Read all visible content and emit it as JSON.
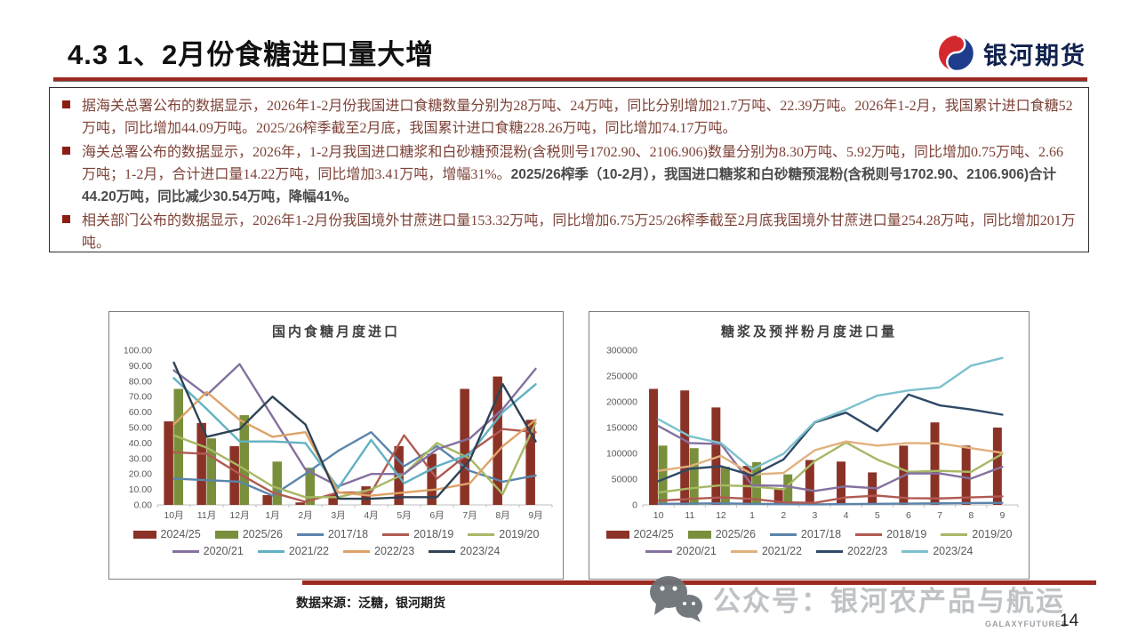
{
  "slide": {
    "title": "4.3 1、2月份食糖进口量大增",
    "logo_text": "银河期货",
    "page_number": "14",
    "source_note": "数据来源：泛糖，银河期货",
    "watermark": {
      "text": "公众号：银河农产品与航运",
      "sub": "GALAXYFUTURES"
    }
  },
  "bullets": [
    {
      "segments": [
        {
          "bold": false,
          "text": "据海关总署公布的数据显示，2026年1-2月份我国进口食糖数量分别为28万吨、24万吨，同比分别增加21.7万吨、22.39万吨。2026年1-2月，我国累计进口食糖52万吨，同比增加44.09万吨。2025/26榨季截至2月底，我国累计进口食糖228.26万吨，同比增加74.17万吨。"
        }
      ]
    },
    {
      "segments": [
        {
          "bold": false,
          "text": "海关总署公布的数据显示，2026年，1-2月我国进口糖浆和白砂糖预混粉(含税则号1702.90、2106.906)数量分别为8.30万吨、5.92万吨，同比增加0.75万吨、2.66万吨；1-2月，合计进口量14.22万吨，同比增加3.41万吨，增幅31%。"
        },
        {
          "bold": true,
          "text": "2025/26榨季（10-2月），我国进口糖浆和白砂糖预混粉(含税则号1702.90、2106.906)合计44.20万吨，同比减少30.54万吨，降幅41%。"
        }
      ]
    },
    {
      "segments": [
        {
          "bold": false,
          "text": "相关部门公布的数据显示，2026年1-2月份我国境外甘蔗进口量153.32万吨，同比增加6.75万25/26榨季截至2月底我国境外甘蔗进口量254.28万吨，同比增加201万吨。"
        }
      ]
    }
  ],
  "chart_data": [
    {
      "type": "bar+line",
      "title": "国内食糖月度进口",
      "categories": [
        "10月",
        "11月",
        "12月",
        "1月",
        "2月",
        "3月",
        "4月",
        "5月",
        "6月",
        "7月",
        "8月",
        "9月"
      ],
      "ylim": [
        0,
        100
      ],
      "grid": false,
      "legend_position": "bottom",
      "y_ticks": [
        {
          "value": 100,
          "label": "100.00"
        },
        {
          "value": 90,
          "label": "90.00"
        },
        {
          "value": 80,
          "label": "80.00"
        },
        {
          "value": 70,
          "label": "70.00"
        },
        {
          "value": 60,
          "label": "60.00"
        },
        {
          "value": 50,
          "label": "50.00"
        },
        {
          "value": 40,
          "label": "40.00"
        },
        {
          "value": 30,
          "label": "30.00"
        },
        {
          "value": 20,
          "label": "20.00"
        },
        {
          "value": 10,
          "label": "10.00"
        },
        {
          "value": 0,
          "label": "0.00"
        }
      ],
      "bar_series": [
        {
          "name": "2024/25",
          "color": "#8b3226",
          "values": [
            54,
            53,
            38,
            6.3,
            1.6,
            7,
            12,
            38,
            33,
            75,
            83,
            55
          ]
        },
        {
          "name": "2025/26",
          "color": "#7a8f3c",
          "values": [
            75,
            43,
            58,
            28,
            24,
            null,
            null,
            null,
            null,
            null,
            null,
            null
          ]
        }
      ],
      "line_series": [
        {
          "name": "2017/18",
          "color": "#5b84ab",
          "values": [
            17,
            16,
            15,
            6,
            20,
            35,
            47,
            25,
            38,
            22,
            15,
            19
          ]
        },
        {
          "name": "2018/19",
          "color": "#b05a52",
          "values": [
            34,
            33,
            20,
            8,
            2,
            8,
            8,
            45,
            17,
            34,
            49,
            47
          ]
        },
        {
          "name": "2019/20",
          "color": "#a7b864",
          "values": [
            45,
            37,
            25,
            12,
            5,
            5,
            10,
            20,
            40,
            30,
            7,
            53
          ]
        },
        {
          "name": "2020/21",
          "color": "#84719f",
          "values": [
            87,
            71,
            91,
            57,
            23,
            12,
            20,
            20,
            36,
            43,
            62,
            88
          ]
        },
        {
          "name": "2021/22",
          "color": "#62b1c2",
          "values": [
            82,
            62,
            41,
            41,
            40,
            11,
            42,
            14,
            25,
            33,
            60,
            78
          ]
        },
        {
          "name": "2022/23",
          "color": "#dda266",
          "values": [
            52,
            73,
            55,
            44,
            47,
            8,
            6,
            8,
            10,
            14,
            38,
            55
          ]
        },
        {
          "name": "2023/24",
          "color": "#2e4355",
          "values": [
            92,
            44,
            49,
            70,
            52,
            4,
            4,
            5,
            5,
            29,
            78,
            41
          ]
        }
      ]
    },
    {
      "type": "bar+line",
      "title": "糖浆及预拌粉月度进口量",
      "categories": [
        "10",
        "11",
        "12",
        "1",
        "2",
        "3",
        "4",
        "5",
        "6",
        "7",
        "8",
        "9"
      ],
      "ylim": [
        0,
        300000
      ],
      "grid": false,
      "legend_position": "bottom",
      "y_ticks": [
        {
          "value": 300000,
          "label": "300000"
        },
        {
          "value": 250000,
          "label": "250000"
        },
        {
          "value": 200000,
          "label": "200000"
        },
        {
          "value": 150000,
          "label": "150000"
        },
        {
          "value": 100000,
          "label": "100000"
        },
        {
          "value": 50000,
          "label": "50000"
        },
        {
          "value": 0,
          "label": "0"
        }
      ],
      "bar_series": [
        {
          "name": "2024/25",
          "color": "#8b3226",
          "values": [
            225000,
            222000,
            189000,
            75500,
            32600,
            87000,
            84000,
            63000,
            115000,
            160000,
            115000,
            150000
          ]
        },
        {
          "name": "2025/26",
          "color": "#7a8f3c",
          "values": [
            115000,
            110000,
            74000,
            83000,
            59200,
            null,
            null,
            null,
            null,
            null,
            null,
            null
          ]
        }
      ],
      "line_series": [
        {
          "name": "2017/18",
          "color": "#5b84ab",
          "values": [
            2000,
            2500,
            3000,
            2000,
            1500,
            1000,
            1500,
            2000,
            2500,
            3000,
            3500,
            4000
          ]
        },
        {
          "name": "2018/19",
          "color": "#b05a52",
          "values": [
            8000,
            11500,
            14500,
            11500,
            5000,
            4000,
            14500,
            18000,
            13000,
            12500,
            14500,
            16500
          ]
        },
        {
          "name": "2019/20",
          "color": "#a7b864",
          "values": [
            24000,
            32000,
            38000,
            36000,
            30000,
            85000,
            121000,
            88000,
            64000,
            66000,
            64000,
            99000
          ]
        },
        {
          "name": "2020/21",
          "color": "#84719f",
          "values": [
            153000,
            120000,
            118000,
            38000,
            37000,
            27000,
            36000,
            32000,
            61000,
            61000,
            51000,
            74000
          ]
        },
        {
          "name": "2021/22",
          "color": "#e2b07e",
          "values": [
            66000,
            75000,
            95000,
            59000,
            62000,
            106000,
            123000,
            115000,
            120000,
            119000,
            110000,
            101000
          ]
        },
        {
          "name": "2022/23",
          "color": "#2e4a66",
          "values": [
            46000,
            70000,
            75000,
            57000,
            88000,
            160000,
            179000,
            143000,
            214000,
            193000,
            185000,
            175000
          ]
        },
        {
          "name": "2023/24",
          "color": "#7cc0cd",
          "values": [
            166000,
            133000,
            120000,
            69000,
            99000,
            161000,
            185000,
            212000,
            222000,
            228000,
            270000,
            285000
          ]
        }
      ]
    }
  ]
}
